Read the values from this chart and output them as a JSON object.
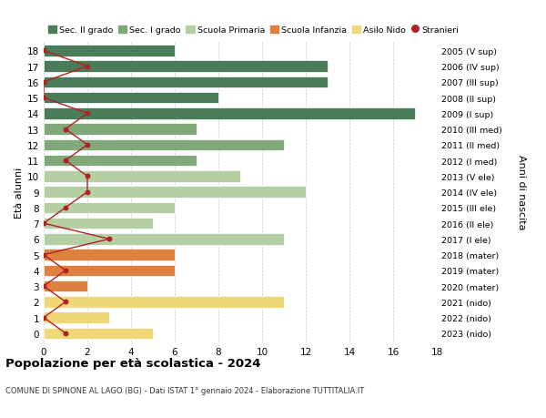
{
  "ages": [
    18,
    17,
    16,
    15,
    14,
    13,
    12,
    11,
    10,
    9,
    8,
    7,
    6,
    5,
    4,
    3,
    2,
    1,
    0
  ],
  "years": [
    "2005 (V sup)",
    "2006 (IV sup)",
    "2007 (III sup)",
    "2008 (II sup)",
    "2009 (I sup)",
    "2010 (III med)",
    "2011 (II med)",
    "2012 (I med)",
    "2013 (V ele)",
    "2014 (IV ele)",
    "2015 (III ele)",
    "2016 (II ele)",
    "2017 (I ele)",
    "2018 (mater)",
    "2019 (mater)",
    "2020 (mater)",
    "2021 (nido)",
    "2022 (nido)",
    "2023 (nido)"
  ],
  "bar_values": [
    6,
    13,
    13,
    8,
    17,
    7,
    11,
    7,
    9,
    12,
    6,
    5,
    11,
    6,
    6,
    2,
    11,
    3,
    5
  ],
  "stranieri": [
    0,
    2,
    0,
    0,
    2,
    1,
    2,
    1,
    2,
    2,
    1,
    0,
    3,
    0,
    1,
    0,
    1,
    0,
    1
  ],
  "bar_colors": [
    "#4a7c59",
    "#4a7c59",
    "#4a7c59",
    "#4a7c59",
    "#4a7c59",
    "#80a87a",
    "#80a87a",
    "#80a87a",
    "#b5cfa5",
    "#b5cfa5",
    "#b5cfa5",
    "#b5cfa5",
    "#b5cfa5",
    "#e08040",
    "#e08040",
    "#e08040",
    "#f0d878",
    "#f0d878",
    "#f0d878"
  ],
  "stranieri_color": "#b22222",
  "xlim": [
    0,
    18
  ],
  "xticks": [
    0,
    2,
    4,
    6,
    8,
    10,
    12,
    14,
    16,
    18
  ],
  "ylabel_left": "Età alunni",
  "ylabel_right": "Anni di nascita",
  "title": "Popolazione per età scolastica - 2024",
  "subtitle": "COMUNE DI SPINONE AL LAGO (BG) - Dati ISTAT 1° gennaio 2024 - Elaborazione TUTTITALIA.IT",
  "legend_labels": [
    "Sec. II grado",
    "Sec. I grado",
    "Scuola Primaria",
    "Scuola Infanzia",
    "Asilo Nido",
    "Stranieri"
  ],
  "legend_colors": [
    "#4a7c59",
    "#80a87a",
    "#b5cfa5",
    "#e08040",
    "#f0d878",
    "#b22222"
  ],
  "background_color": "#ffffff",
  "grid_color": "#cccccc"
}
